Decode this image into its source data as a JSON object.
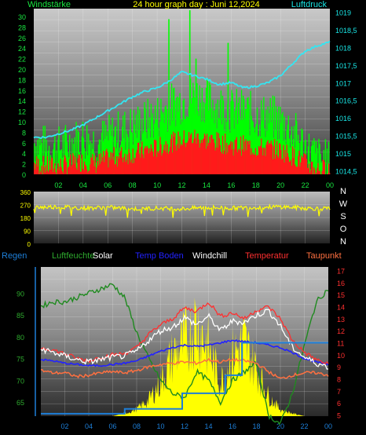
{
  "chart_data": [
    {
      "type": "line",
      "title": "24 hour graph day : Juni 12,2024",
      "left_label": "Windstärke",
      "right_label": "Luftdruck",
      "y_left_ticks": [
        "0",
        "2",
        "4",
        "6",
        "8",
        "10",
        "12",
        "14",
        "16",
        "18",
        "20",
        "22",
        "24",
        "26",
        "28",
        "30"
      ],
      "y_right_ticks": [
        "1014,5",
        "1015",
        "1015,5",
        "1016",
        "1016,5",
        "1017",
        "1017,5",
        "1018",
        "1018,5",
        "1019"
      ],
      "x_ticks": [
        "02",
        "04",
        "06",
        "08",
        "10",
        "12",
        "14",
        "16",
        "18",
        "20",
        "22",
        "00"
      ],
      "ylim_left": [
        0,
        31.5
      ],
      "ylim_right": [
        1014.4,
        1019.1
      ],
      "series": [
        {
          "name": "Luftdruck",
          "color": "#33e6f2",
          "x": [
            0,
            1,
            2,
            3,
            4,
            5,
            6,
            7,
            8,
            9,
            10,
            11,
            12,
            13,
            14,
            15,
            16,
            17,
            18,
            19,
            20,
            21,
            22,
            23,
            24
          ],
          "values": [
            1015.45,
            1015.45,
            1015.55,
            1015.65,
            1015.8,
            1016.0,
            1016.2,
            1016.4,
            1016.6,
            1016.75,
            1016.85,
            1017.05,
            1017.3,
            1017.2,
            1017.1,
            1016.95,
            1017.0,
            1016.85,
            1016.9,
            1017.0,
            1017.2,
            1017.55,
            1017.9,
            1018.05,
            1018.15
          ]
        },
        {
          "name": "gust",
          "color": "#00ff00",
          "x": [
            0,
            1,
            2,
            3,
            4,
            5,
            6,
            7,
            8,
            9,
            10,
            11,
            12,
            13,
            14,
            15,
            16,
            17,
            18,
            19,
            20,
            21,
            22,
            23,
            24
          ],
          "values": [
            6,
            5,
            5,
            6,
            7,
            6,
            7,
            8,
            9,
            10,
            11,
            13,
            14,
            15,
            14,
            13,
            12,
            12,
            11,
            11,
            10,
            8,
            5,
            3,
            2
          ]
        },
        {
          "name": "wind",
          "color": "#ff1a1a",
          "x": [
            0,
            1,
            2,
            3,
            4,
            5,
            6,
            7,
            8,
            9,
            10,
            11,
            12,
            13,
            14,
            15,
            16,
            17,
            18,
            19,
            20,
            21,
            22,
            23,
            24
          ],
          "values": [
            2,
            1.5,
            1.5,
            2,
            2.5,
            2,
            3,
            3.5,
            4,
            4.5,
            5,
            6,
            6.5,
            7,
            6.5,
            6,
            5.5,
            5.5,
            5,
            5,
            4.5,
            3.5,
            2,
            1,
            1
          ]
        }
      ]
    },
    {
      "type": "line",
      "title": "",
      "y_left_ticks": [
        "360",
        "270",
        "180",
        "90",
        "0"
      ],
      "right_labels": [
        "N",
        "W",
        "S",
        "O",
        "N"
      ],
      "ylim": [
        0,
        360
      ],
      "series": [
        {
          "name": "direction",
          "color": "#ffff00",
          "x": [
            0,
            2,
            4,
            6,
            8,
            10,
            12,
            14,
            16,
            18,
            20,
            22,
            24
          ],
          "values": [
            250,
            255,
            245,
            250,
            240,
            245,
            240,
            250,
            245,
            250,
            255,
            245,
            240
          ]
        }
      ]
    },
    {
      "type": "line",
      "legend": [
        {
          "label": "Regen",
          "color": "#1e7fd8"
        },
        {
          "label": "Luftfeuchte",
          "color": "#2eaa2e"
        },
        {
          "label": "Solar",
          "color": "#ffffff"
        },
        {
          "label": "Temp Boden",
          "color": "#2222ff"
        },
        {
          "label": "Windchill",
          "color": "#ffffff"
        },
        {
          "label": "Temperatur",
          "color": "#ff3030"
        },
        {
          "label": "Taupunkt",
          "color": "#ff7040"
        }
      ],
      "y_left_ticks": [
        "65",
        "70",
        "75",
        "80",
        "85",
        "90"
      ],
      "y_right_ticks": [
        "5",
        "6",
        "7",
        "8",
        "9",
        "10",
        "11",
        "12",
        "13",
        "14",
        "15",
        "16",
        "17"
      ],
      "x_ticks": [
        "02",
        "04",
        "06",
        "08",
        "10",
        "12",
        "14",
        "16",
        "18",
        "20",
        "22",
        "00"
      ],
      "series": [
        {
          "name": "Luftfeuchte",
          "color": "#1f8a1f",
          "axis": "left",
          "x": [
            0,
            1,
            2,
            3,
            4,
            5,
            6,
            7,
            8,
            9,
            10,
            11,
            12,
            13,
            14,
            15,
            16,
            17,
            18,
            19,
            20,
            21,
            22,
            23,
            24
          ],
          "values": [
            87,
            88,
            88,
            89,
            90,
            91,
            92,
            89,
            81,
            75,
            70,
            67,
            66,
            72,
            70,
            65,
            70,
            72,
            74,
            62,
            60,
            67,
            78,
            88,
            91
          ]
        },
        {
          "name": "Temperatur",
          "color": "#ff3030",
          "axis": "right",
          "x": [
            0,
            1,
            2,
            3,
            4,
            5,
            6,
            7,
            8,
            9,
            10,
            11,
            12,
            13,
            14,
            15,
            16,
            17,
            18,
            19,
            20,
            21,
            22,
            23,
            24
          ],
          "values": [
            10.6,
            10.4,
            10.1,
            9.7,
            9.5,
            9.8,
            10.0,
            10.1,
            10.6,
            11.7,
            12.5,
            13.0,
            13.9,
            13.6,
            14.4,
            13.2,
            13.5,
            13.0,
            13.7,
            14.0,
            13.0,
            11.2,
            10.2,
            9.6,
            9.2
          ]
        },
        {
          "name": "Windchill",
          "color": "#ffffff",
          "axis": "right",
          "x": [
            0,
            1,
            2,
            3,
            4,
            5,
            6,
            7,
            8,
            9,
            10,
            11,
            12,
            13,
            14,
            15,
            16,
            17,
            18,
            19,
            20,
            21,
            22,
            23,
            24
          ],
          "values": [
            10.5,
            10.2,
            9.9,
            9.6,
            9.4,
            9.6,
            9.8,
            9.9,
            10.3,
            11.2,
            12.0,
            12.3,
            13.1,
            12.5,
            13.2,
            12.0,
            12.8,
            12.7,
            13.3,
            13.7,
            12.4,
            10.6,
            9.8,
            9.3,
            9.0
          ]
        },
        {
          "name": "Temp Boden",
          "color": "#2222ff",
          "axis": "right",
          "x": [
            0,
            1,
            2,
            3,
            4,
            5,
            6,
            7,
            8,
            9,
            10,
            11,
            12,
            13,
            14,
            15,
            16,
            17,
            18,
            19,
            20,
            21,
            22,
            23,
            24
          ],
          "values": [
            9.6,
            9.5,
            9.3,
            9.2,
            9.1,
            9.1,
            9.2,
            9.3,
            9.5,
            9.9,
            10.3,
            10.6,
            10.8,
            10.7,
            10.8,
            11.0,
            11.2,
            11.1,
            11.0,
            10.8,
            10.6,
            10.2,
            9.7,
            9.4,
            9.2
          ]
        },
        {
          "name": "Taupunkt",
          "color": "#ff7040",
          "axis": "right",
          "x": [
            0,
            1,
            2,
            3,
            4,
            5,
            6,
            7,
            8,
            9,
            10,
            11,
            12,
            13,
            14,
            15,
            16,
            17,
            18,
            19,
            20,
            21,
            22,
            23,
            24
          ],
          "values": [
            8.7,
            8.5,
            8.5,
            8.2,
            8.3,
            8.5,
            8.6,
            8.5,
            8.7,
            9.0,
            9.2,
            9.3,
            9.4,
            9.3,
            9.6,
            9.4,
            9.6,
            9.5,
            9.3,
            8.6,
            8.0,
            8.3,
            8.5,
            8.5,
            8.3
          ]
        },
        {
          "name": "Solar",
          "color": "#ffff00",
          "axis": "none",
          "x": [
            0,
            1,
            2,
            3,
            4,
            5,
            6,
            7,
            8,
            9,
            10,
            11,
            12,
            13,
            14,
            15,
            16,
            17,
            18,
            19,
            20,
            21,
            22,
            23,
            24
          ],
          "values": [
            0,
            0,
            0,
            0,
            0,
            0,
            0,
            0.02,
            0.05,
            0.12,
            0.25,
            0.45,
            0.55,
            0.7,
            0.5,
            0.25,
            0.45,
            0.55,
            0.35,
            0.15,
            0.05,
            0.02,
            0,
            0,
            0
          ]
        },
        {
          "name": "Regen",
          "color": "#1e7fd8",
          "axis": "right",
          "x": [
            0,
            7,
            7,
            11.8,
            11.8,
            15.4,
            15.4,
            16.8,
            16.8,
            24
          ],
          "values": [
            5.1,
            5.1,
            5.5,
            5.5,
            6.8,
            6.8,
            8.3,
            8.3,
            11.0,
            11.0
          ]
        }
      ]
    }
  ]
}
